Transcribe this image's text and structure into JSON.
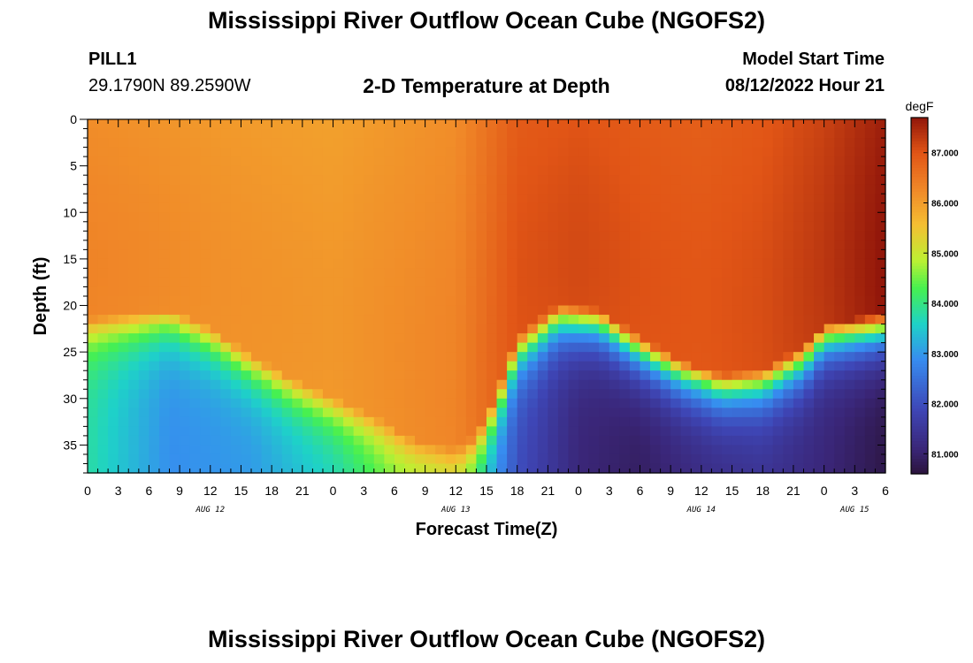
{
  "header": {
    "title": "Mississippi River Outflow Ocean Cube (NGOFS2)",
    "station_name": "PILL1",
    "station_coords": "29.1790N  89.2590W",
    "subtitle": "2-D Temperature at Depth",
    "model_start_label": "Model Start Time",
    "model_start_value": "08/12/2022 Hour 21"
  },
  "footer": {
    "title": "Mississippi River Outflow Ocean Cube (NGOFS2)"
  },
  "chart_data": {
    "type": "heatmap",
    "xlabel": "Forecast Time(Z)",
    "ylabel": "Depth (ft)",
    "x_tick_labels": [
      "0",
      "3",
      "6",
      "9",
      "12",
      "15",
      "18",
      "21",
      "0",
      "3",
      "6",
      "9",
      "12",
      "15",
      "18",
      "21",
      "0",
      "3",
      "6",
      "9",
      "12",
      "15",
      "18",
      "21",
      "0",
      "3",
      "6"
    ],
    "x_range_hours": [
      0,
      78
    ],
    "date_labels": [
      {
        "text": "AUG 12",
        "hour": 12
      },
      {
        "text": "AUG 13",
        "hour": 36
      },
      {
        "text": "AUG 14",
        "hour": 60
      },
      {
        "text": "AUG 15",
        "hour": 75
      }
    ],
    "y_ticks": [
      0,
      5,
      10,
      15,
      20,
      25,
      30,
      35
    ],
    "y_range": [
      0,
      38
    ],
    "y_inverted": true,
    "colorbar": {
      "unit": "degF",
      "min": 80.6,
      "max": 87.7,
      "ticks": [
        "87.000",
        "86.000",
        "85.000",
        "84.000",
        "83.000",
        "82.000",
        "81.000"
      ]
    },
    "thermocline_depth_ft": [
      {
        "hour": 0,
        "depth": 21.5
      },
      {
        "hour": 4,
        "depth": 21.0
      },
      {
        "hour": 8,
        "depth": 20.5
      },
      {
        "hour": 12,
        "depth": 22.5
      },
      {
        "hour": 16,
        "depth": 25.5
      },
      {
        "hour": 20,
        "depth": 28.0
      },
      {
        "hour": 24,
        "depth": 30.0
      },
      {
        "hour": 28,
        "depth": 32.0
      },
      {
        "hour": 32,
        "depth": 34.5
      },
      {
        "hour": 36,
        "depth": 35.5
      },
      {
        "hour": 38,
        "depth": 34.0
      },
      {
        "hour": 40,
        "depth": 29.5
      },
      {
        "hour": 42,
        "depth": 23.5
      },
      {
        "hour": 46,
        "depth": 20.0
      },
      {
        "hour": 50,
        "depth": 20.5
      },
      {
        "hour": 54,
        "depth": 23.5
      },
      {
        "hour": 58,
        "depth": 26.0
      },
      {
        "hour": 62,
        "depth": 27.5
      },
      {
        "hour": 66,
        "depth": 27.0
      },
      {
        "hour": 70,
        "depth": 24.5
      },
      {
        "hour": 72,
        "depth": 22.0
      },
      {
        "hour": 78,
        "depth": 21.0
      }
    ],
    "surface_temp_degF": [
      {
        "hour": 0,
        "value": 86.2
      },
      {
        "hour": 12,
        "value": 86.05
      },
      {
        "hour": 24,
        "value": 85.95
      },
      {
        "hour": 36,
        "value": 86.2
      },
      {
        "hour": 42,
        "value": 86.9
      },
      {
        "hour": 48,
        "value": 87.0
      },
      {
        "hour": 54,
        "value": 86.9
      },
      {
        "hour": 60,
        "value": 86.85
      },
      {
        "hour": 66,
        "value": 86.95
      },
      {
        "hour": 72,
        "value": 87.2
      },
      {
        "hour": 78,
        "value": 87.6
      }
    ],
    "deep_temp_degF": [
      {
        "hour": 0,
        "value": 83.8
      },
      {
        "hour": 8,
        "value": 82.9
      },
      {
        "hour": 16,
        "value": 83.0
      },
      {
        "hour": 24,
        "value": 83.6
      },
      {
        "hour": 30,
        "value": 84.4
      },
      {
        "hour": 36,
        "value": 84.6
      },
      {
        "hour": 42,
        "value": 82.0
      },
      {
        "hour": 48,
        "value": 81.1
      },
      {
        "hour": 54,
        "value": 80.9
      },
      {
        "hour": 60,
        "value": 81.2
      },
      {
        "hour": 66,
        "value": 81.4
      },
      {
        "hour": 72,
        "value": 81.1
      },
      {
        "hour": 78,
        "value": 80.7
      }
    ]
  }
}
